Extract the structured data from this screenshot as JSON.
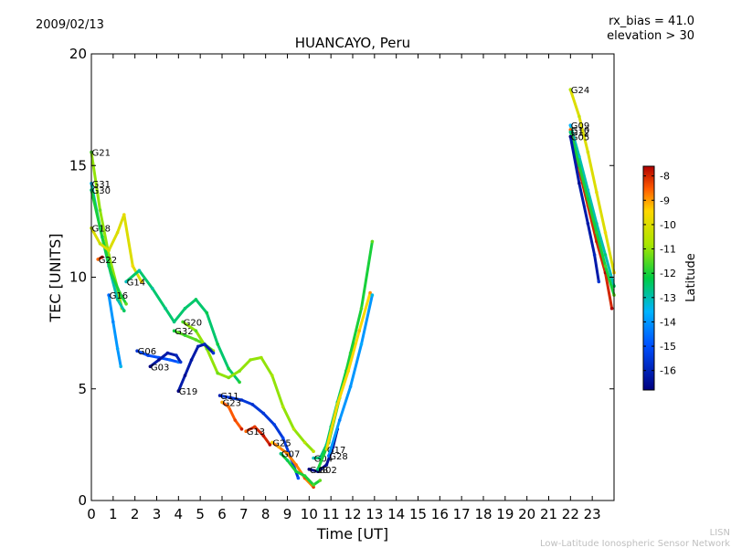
{
  "header": {
    "date": "2009/02/13",
    "rx_bias": "rx_bias = 41.0",
    "elevation": "elevation > 30"
  },
  "footer": {
    "org_short": "LISN",
    "org_long": "Low-Latitude Ionospheric Sensor Network"
  },
  "colorbar": {
    "label": "Latitude",
    "ticks": [
      "-8",
      "-9",
      "-10",
      "-11",
      "-12",
      "-13",
      "-14",
      "-15",
      "-16"
    ],
    "range": [
      -16.8,
      -7.6
    ],
    "colors": {
      "low": "#00007f",
      "mid_low": "#0080ff",
      "mid": "#00cc44",
      "mid_high": "#ffd700",
      "high": "#d40000"
    }
  },
  "chart_data": {
    "type": "scatter",
    "title": "HUANCAYO, Peru",
    "xlabel": "Time [UT]",
    "ylabel": "TEC [UNITS]",
    "xlim": [
      0,
      24
    ],
    "ylim": [
      0,
      20
    ],
    "xticks": [
      "0",
      "1",
      "2",
      "3",
      "4",
      "5",
      "6",
      "7",
      "8",
      "9",
      "10",
      "11",
      "12",
      "13",
      "14",
      "15",
      "16",
      "17",
      "18",
      "19",
      "20",
      "21",
      "22",
      "23"
    ],
    "yticks": [
      "0",
      "5",
      "10",
      "15",
      "20"
    ],
    "grid": false,
    "series": [
      {
        "name": "G21",
        "lat": -11,
        "points": [
          [
            0.0,
            15.6
          ],
          [
            0.4,
            13.0
          ],
          [
            0.8,
            11.0
          ],
          [
            1.2,
            9.5
          ],
          [
            1.4,
            8.6
          ]
        ]
      },
      {
        "name": "G31",
        "lat": -13,
        "points": [
          [
            0.0,
            14.2
          ],
          [
            0.4,
            12.2
          ],
          [
            0.8,
            10.5
          ],
          [
            1.2,
            9.0
          ],
          [
            1.5,
            8.5
          ]
        ]
      },
      {
        "name": "G30",
        "lat": -12,
        "points": [
          [
            0.0,
            13.9
          ],
          [
            0.5,
            11.8
          ],
          [
            0.9,
            10.2
          ],
          [
            1.3,
            9.3
          ],
          [
            1.6,
            8.8
          ]
        ]
      },
      {
        "name": "G18",
        "lat": -10,
        "points": [
          [
            0.0,
            12.2
          ],
          [
            0.4,
            11.5
          ],
          [
            0.8,
            11.2
          ],
          [
            1.2,
            12.0
          ],
          [
            1.5,
            12.8
          ],
          [
            1.9,
            10.5
          ],
          [
            2.3,
            9.8
          ]
        ]
      },
      {
        "name": "G22",
        "lat": -8,
        "points": [
          [
            0.3,
            10.8
          ],
          [
            0.5,
            10.9
          ]
        ]
      },
      {
        "name": "G16",
        "lat": -14,
        "points": [
          [
            0.8,
            9.2
          ],
          [
            1.0,
            8.0
          ],
          [
            1.2,
            6.8
          ],
          [
            1.35,
            6.0
          ]
        ]
      },
      {
        "name": "G14",
        "lat": -12.5,
        "points": [
          [
            1.6,
            9.8
          ],
          [
            2.2,
            10.3
          ],
          [
            2.8,
            9.5
          ],
          [
            3.4,
            8.6
          ],
          [
            3.8,
            8.0
          ],
          [
            4.3,
            8.6
          ],
          [
            4.8,
            9.0
          ],
          [
            5.3,
            8.4
          ],
          [
            5.8,
            7.0
          ],
          [
            6.3,
            5.9
          ],
          [
            6.8,
            5.3
          ]
        ]
      },
      {
        "name": "G06",
        "lat": -15,
        "points": [
          [
            2.1,
            6.7
          ],
          [
            2.6,
            6.5
          ],
          [
            3.1,
            6.4
          ],
          [
            3.6,
            6.3
          ],
          [
            4.0,
            6.2
          ]
        ]
      },
      {
        "name": "G03",
        "lat": -16.2,
        "points": [
          [
            2.7,
            6.0
          ],
          [
            3.1,
            6.3
          ],
          [
            3.5,
            6.6
          ],
          [
            3.9,
            6.5
          ],
          [
            4.1,
            6.2
          ]
        ]
      },
      {
        "name": "G32",
        "lat": -11.5,
        "points": [
          [
            3.8,
            7.6
          ],
          [
            4.3,
            7.4
          ],
          [
            4.8,
            7.2
          ],
          [
            5.2,
            7.0
          ],
          [
            5.6,
            6.7
          ]
        ]
      },
      {
        "name": "G20",
        "lat": -11,
        "points": [
          [
            4.2,
            8.0
          ],
          [
            4.8,
            7.6
          ],
          [
            5.3,
            6.8
          ],
          [
            5.8,
            5.7
          ],
          [
            6.3,
            5.5
          ],
          [
            6.8,
            5.8
          ],
          [
            7.3,
            6.3
          ],
          [
            7.8,
            6.4
          ],
          [
            8.3,
            5.6
          ],
          [
            8.8,
            4.2
          ],
          [
            9.3,
            3.2
          ],
          [
            9.8,
            2.6
          ],
          [
            10.2,
            2.2
          ]
        ]
      },
      {
        "name": "G19",
        "lat": -16.2,
        "points": [
          [
            4.0,
            4.9
          ],
          [
            4.3,
            5.6
          ],
          [
            4.6,
            6.3
          ],
          [
            4.9,
            6.9
          ],
          [
            5.2,
            7.0
          ],
          [
            5.6,
            6.6
          ]
        ]
      },
      {
        "name": "G11",
        "lat": -15.5,
        "points": [
          [
            5.9,
            4.7
          ],
          [
            6.4,
            4.6
          ],
          [
            6.9,
            4.5
          ],
          [
            7.4,
            4.3
          ],
          [
            7.9,
            3.9
          ],
          [
            8.4,
            3.4
          ],
          [
            8.8,
            2.8
          ],
          [
            9.2,
            1.8
          ],
          [
            9.5,
            1.0
          ]
        ]
      },
      {
        "name": "G23",
        "lat": -8.5,
        "points": [
          [
            6.0,
            4.4
          ],
          [
            6.3,
            4.2
          ],
          [
            6.6,
            3.6
          ],
          [
            6.9,
            3.2
          ]
        ]
      },
      {
        "name": "G13",
        "lat": -8,
        "points": [
          [
            7.1,
            3.1
          ],
          [
            7.5,
            3.3
          ],
          [
            7.9,
            2.9
          ],
          [
            8.2,
            2.5
          ]
        ]
      },
      {
        "name": "G25",
        "lat": -8.8,
        "points": [
          [
            8.3,
            2.6
          ],
          [
            8.6,
            2.4
          ],
          [
            9.0,
            2.1
          ],
          [
            9.4,
            1.6
          ],
          [
            9.8,
            1.0
          ],
          [
            10.2,
            0.6
          ]
        ]
      },
      {
        "name": "G07",
        "lat": -12,
        "points": [
          [
            8.7,
            2.1
          ],
          [
            9.0,
            1.8
          ],
          [
            9.4,
            1.3
          ],
          [
            9.8,
            1.1
          ],
          [
            10.2,
            0.7
          ],
          [
            10.5,
            0.9
          ]
        ]
      },
      {
        "name": "G04",
        "lat": -12.5,
        "points": [
          [
            10.2,
            1.9
          ],
          [
            10.5,
            1.9
          ],
          [
            10.8,
            2.5
          ],
          [
            11.0,
            3.3
          ],
          [
            11.3,
            4.4
          ],
          [
            11.7,
            5.8
          ],
          [
            12.1,
            7.0
          ]
        ]
      },
      {
        "name": "G08",
        "lat": -16.5,
        "points": [
          [
            10.0,
            1.4
          ],
          [
            10.4,
            1.3
          ],
          [
            10.8,
            1.6
          ],
          [
            11.1,
            2.4
          ],
          [
            11.3,
            3.2
          ]
        ]
      },
      {
        "name": "G02",
        "lat": -12,
        "points": [
          [
            10.4,
            1.4
          ],
          [
            10.9,
            2.6
          ],
          [
            11.4,
            4.6
          ],
          [
            11.9,
            6.6
          ],
          [
            12.4,
            8.6
          ],
          [
            12.9,
            11.6
          ]
        ]
      },
      {
        "name": "G17",
        "lat": -9.5,
        "points": [
          [
            10.8,
            2.3
          ],
          [
            11.3,
            4.3
          ],
          [
            11.8,
            5.8
          ],
          [
            12.3,
            7.6
          ],
          [
            12.8,
            9.3
          ]
        ]
      },
      {
        "name": "G28",
        "lat": -14,
        "points": [
          [
            10.9,
            2.0
          ],
          [
            11.4,
            3.6
          ],
          [
            11.9,
            5.1
          ],
          [
            12.4,
            7.0
          ],
          [
            12.9,
            9.2
          ]
        ]
      },
      {
        "name": "G24",
        "lat": -10,
        "points": [
          [
            22.0,
            18.4
          ],
          [
            22.4,
            17.2
          ],
          [
            22.8,
            15.6
          ],
          [
            23.2,
            13.8
          ],
          [
            23.6,
            12.0
          ],
          [
            24.0,
            10.2
          ]
        ]
      },
      {
        "name": "G09",
        "lat": -13,
        "points": [
          [
            22.0,
            16.8
          ],
          [
            22.4,
            15.4
          ],
          [
            22.8,
            13.9
          ],
          [
            23.2,
            12.4
          ],
          [
            23.6,
            11.0
          ],
          [
            24.0,
            9.6
          ]
        ]
      },
      {
        "name": "G10",
        "lat": -8,
        "points": [
          [
            22.0,
            16.6
          ],
          [
            22.4,
            14.8
          ],
          [
            22.8,
            13.2
          ],
          [
            23.2,
            11.6
          ],
          [
            23.6,
            10.2
          ],
          [
            23.9,
            8.6
          ]
        ]
      },
      {
        "name": "G12",
        "lat": -12,
        "points": [
          [
            22.0,
            16.5
          ],
          [
            22.4,
            15.0
          ],
          [
            22.8,
            13.5
          ],
          [
            23.2,
            12.0
          ],
          [
            23.6,
            10.5
          ],
          [
            24.0,
            9.2
          ]
        ]
      },
      {
        "name": "G05",
        "lat": -16.2,
        "points": [
          [
            22.0,
            16.3
          ],
          [
            22.4,
            14.2
          ],
          [
            22.8,
            12.4
          ],
          [
            23.1,
            11.0
          ],
          [
            23.3,
            9.8
          ]
        ]
      }
    ]
  }
}
